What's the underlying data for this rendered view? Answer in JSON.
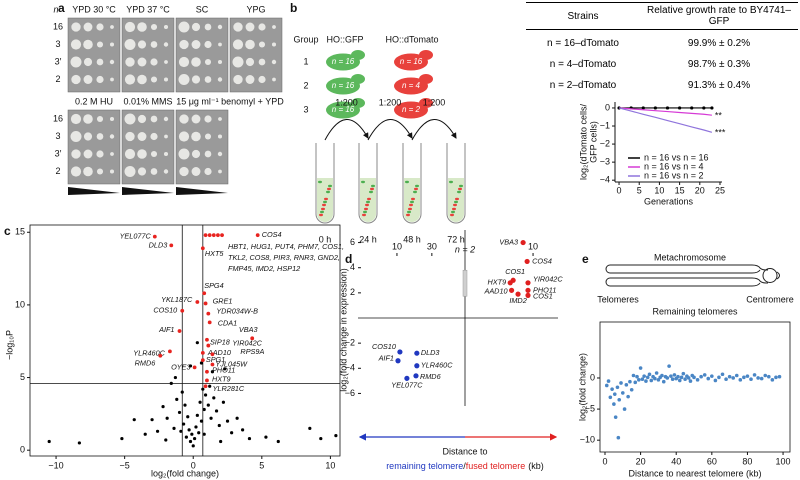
{
  "panel_labels": {
    "a": "a",
    "b": "b",
    "c": "c",
    "d": "d",
    "e": "e"
  },
  "a": {
    "n_header": "n",
    "top_conditions": [
      "YPD 30 °C",
      "YPD 37 °C",
      "SC",
      "YPG"
    ],
    "bottom_conditions": [
      "0.2 M HU",
      "0.01% MMS",
      "15 μg ml⁻¹ benomyl + YPD"
    ],
    "strains": [
      "16",
      "3",
      "3′",
      "2"
    ]
  },
  "b": {
    "group_header": "Group",
    "gfp_header": "HO::GFP",
    "tomato_header": "HO::dTomato",
    "groups": [
      "1",
      "2",
      "3"
    ],
    "gfp_cells": [
      "n = 16",
      "n = 16",
      "n = 16"
    ],
    "tomato_cells": [
      "n = 16",
      "n = 4",
      "n = 2"
    ],
    "dilutions": [
      "1:200",
      "1:200",
      "1:200"
    ],
    "times": [
      "0 h",
      "24 h",
      "48 h",
      "72 h"
    ]
  },
  "table": {
    "headers": [
      "Strains",
      "Relative growth rate to BY4741–GFP"
    ],
    "rows": [
      [
        "n = 16–dTomato",
        "99.9% ± 0.2%"
      ],
      [
        "n = 4–dTomato",
        "98.7% ± 0.3%"
      ],
      [
        "n = 2–dTomato",
        "91.3% ± 0.4%"
      ]
    ]
  },
  "growth_chart": {
    "type": "line",
    "y_label_lines": [
      "log₂(dTomato cells/",
      "GFP cells)"
    ],
    "x_label": "Generations",
    "xlim": [
      -1,
      25.5
    ],
    "ylim": [
      -4.1,
      0.33
    ],
    "xticks": [
      0,
      5,
      10,
      15,
      20,
      25
    ],
    "yticks": [
      0,
      {
        "value": -1,
        "label": "−1"
      },
      {
        "value": -2,
        "label": "−2"
      },
      {
        "value": -3,
        "label": "−3"
      },
      {
        "value": -4,
        "label": "−4"
      }
    ],
    "x": [
      0,
      3,
      6,
      9,
      12,
      15,
      18,
      21,
      23
    ],
    "series": [
      {
        "name": "n = 16 vs n = 16",
        "color": "#000000",
        "values": [
          0,
          0,
          0,
          0,
          0,
          0,
          0,
          0,
          0
        ]
      },
      {
        "name": "n = 16 vs n = 4",
        "color": "#d63ad6",
        "values": [
          0,
          -0.05,
          -0.1,
          -0.15,
          -0.2,
          -0.25,
          -0.3,
          -0.35,
          -0.4
        ]
      },
      {
        "name": "n = 16 vs n = 2",
        "color": "#8f74dc",
        "values": [
          0,
          -0.17,
          -0.35,
          -0.52,
          -0.7,
          -0.87,
          -1.05,
          -1.22,
          -1.35
        ]
      }
    ],
    "significance": [
      "**",
      "***"
    ]
  },
  "volcano": {
    "type": "scatter",
    "y_label": "−log₁₀P",
    "x_label": "log₂(fold change)",
    "xlim": [
      -11.9,
      10.7
    ],
    "ylim": [
      -0.4,
      15.5
    ],
    "xticks": [
      {
        "value": -10,
        "label": "−10"
      },
      {
        "value": -5,
        "label": "−5"
      },
      0,
      5,
      10
    ],
    "yticks": [
      0,
      5,
      10,
      15
    ],
    "threshold_x": [
      -0.8,
      0.7
    ],
    "threshold_y": 4.6,
    "background": {
      "color": "#000000",
      "x": [
        -10.5,
        -8.3,
        -5.2,
        -4.3,
        -3.5,
        -3.0,
        -2.6,
        -2.2,
        -2.0,
        -1.9,
        -1.6,
        -1.4,
        -1.3,
        -1.2,
        -1.0,
        -0.9,
        -0.8,
        -0.7,
        -0.6,
        -0.5,
        -0.4,
        -0.3,
        -0.2,
        -0.2,
        -0.1,
        0,
        0.1,
        0.2,
        0.3,
        0.3,
        0.4,
        0.5,
        0.6,
        0.6,
        0.7,
        0.8,
        0.8,
        0.9,
        1.0,
        1.1,
        1.2,
        1.3,
        1.4,
        1.5,
        1.7,
        1.9,
        2.0,
        2.2,
        2.3,
        2.5,
        2.8,
        3.2,
        3.6,
        4.1,
        5.3,
        6.2,
        8.5,
        9.3,
        10.4
      ],
      "y": [
        0.6,
        0.5,
        0.8,
        2.1,
        1.1,
        2.1,
        1.3,
        3.0,
        0.7,
        2.2,
        4.6,
        1.5,
        5.0,
        3.5,
        2.6,
        1.3,
        4.0,
        1.8,
        3.1,
        0.9,
        2.3,
        1.4,
        0.6,
        5.8,
        1.1,
        0.3,
        0.8,
        1.6,
        2.4,
        7.4,
        1.2,
        3.3,
        2.0,
        6.0,
        4.2,
        2.8,
        1.1,
        3.8,
        4.8,
        3.1,
        4.4,
        2.2,
        5.4,
        3.6,
        2.7,
        1.7,
        0.6,
        3.3,
        5.6,
        2.0,
        1.2,
        2.2,
        1.4,
        0.8,
        0.9,
        0.6,
        1.5,
        0.8,
        1.0
      ]
    },
    "significant": {
      "color": "#e8231f",
      "genes": [
        "YEL077C",
        "DLD3",
        "COS4",
        "HXT5",
        "SPG4",
        "GRE1",
        "YKL187C",
        "YDR034W-B",
        "COS10",
        "CDA1",
        "AIF1",
        "VBA3",
        "SIP18",
        "YIR042C",
        "AAD10",
        "RPS9A",
        "YLR460C",
        "RMD6",
        "SPG1",
        "YJL045W",
        "OYE3",
        "PHO11",
        "HXT9",
        "YLR281C"
      ],
      "x": [
        -2.8,
        -1.6,
        4.7,
        0.7,
        0.8,
        0.9,
        0.3,
        1.1,
        -0.8,
        1.2,
        -1.0,
        4.3,
        1.0,
        1.1,
        0.7,
        1.4,
        -1.7,
        -2.4,
        0.7,
        1.4,
        0.1,
        1.0,
        1.0,
        0.9
      ],
      "y": [
        14.7,
        14.1,
        14.8,
        13.9,
        10.8,
        10.1,
        10.2,
        9.4,
        9.6,
        8.8,
        8.2,
        7.7,
        7.6,
        7.2,
        6.7,
        6.6,
        6.8,
        6.5,
        6.2,
        5.9,
        5.7,
        5.4,
        4.8,
        4.4
      ]
    },
    "cluster": {
      "x": [
        0.9,
        1.2,
        1.5,
        1.8,
        2.1
      ],
      "y": [
        14.8,
        14.8,
        14.8,
        14.8,
        14.8
      ],
      "label_lines": [
        "HBT1, HUG1, PUT4, PHM7, COS1,",
        "TKL2, COS8, PIR3, RNR3, GND2,",
        "FMP45, IMD2, HSP12"
      ]
    }
  },
  "expression": {
    "type": "scatter",
    "title": "n = 2",
    "y_label": "log₂(fold change in expression)",
    "ylim": [
      -7,
      7
    ],
    "yticks": [
      {
        "value": -6,
        "label": "−6"
      },
      {
        "value": -4,
        "label": "−4"
      },
      {
        "value": -2,
        "label": "−2"
      },
      2,
      4,
      6
    ],
    "xlim": [
      0,
      49
    ],
    "left_ticks": [
      10,
      30
    ],
    "right_ticks": [
      10
    ],
    "x_label": "Distance to",
    "x_label_remaining": "remaining telomere",
    "x_label_sep": "/",
    "x_label_fused": "fused telomere",
    "x_label_unit": "(kb)",
    "remaining": {
      "color": "#2038c0",
      "genes": [
        "COS10",
        "AIF1",
        "DLD3",
        "YLR460C",
        "RMD6",
        "YEL077C"
      ],
      "distance": [
        11.7,
        10.6,
        21.4,
        21.4,
        20.9,
        15.7
      ],
      "values": [
        -2.7,
        -3.4,
        -2.8,
        -3.8,
        -4.6,
        -4.8
      ]
    },
    "fused": {
      "color": "#e02020",
      "genes": [
        "VBA3",
        "COS4",
        "COS1",
        "HXT9",
        "YIR042C",
        "PHO11",
        "AAD10",
        "IMD2",
        "COS1"
      ],
      "distance": [
        15.7,
        13.4,
        21.4,
        23.1,
        12.9,
        12.9,
        22.3,
        18.6,
        12.9
      ],
      "values": [
        6.0,
        4.5,
        3.0,
        2.8,
        2.8,
        2.2,
        2.2,
        1.9,
        1.8
      ]
    }
  },
  "e": {
    "diagram_title": "Metachromosome",
    "telomeres": "Telomeres",
    "centromere": "Centromere",
    "chart": {
      "type": "scatter",
      "title": "Remaining telomeres",
      "y_label": "log₂(fold change)",
      "x_label": "Distance to nearest telomere (kb)",
      "xlim": [
        -2.8,
        103.9
      ],
      "ylim": [
        -11.9,
        9.0
      ],
      "xticks": [
        0,
        20,
        40,
        60,
        80,
        100
      ],
      "yticks": [
        0,
        {
          "value": -5,
          "label": "−5"
        },
        {
          "value": -10,
          "label": "−10"
        }
      ],
      "color": "#4a86c5",
      "x": [
        1,
        2,
        3,
        4,
        5,
        5.5,
        6,
        7,
        7.5,
        8,
        9,
        10,
        11,
        12,
        13,
        14,
        15,
        16,
        17,
        18,
        19,
        20,
        21,
        22,
        23,
        24,
        25,
        26,
        27,
        28,
        29,
        30,
        31,
        32,
        33,
        34,
        35,
        36,
        37,
        38,
        39,
        40,
        41,
        42,
        43,
        44,
        45,
        46,
        47,
        48,
        49,
        50,
        52,
        54,
        56,
        58,
        60,
        62,
        64,
        66,
        68,
        70,
        72,
        74,
        76,
        78,
        80,
        82,
        84,
        86,
        88,
        90,
        92,
        94,
        96,
        98
      ],
      "y": [
        -1.2,
        -0.5,
        -3.1,
        -1.8,
        -4.2,
        -2.6,
        -6.3,
        -1.5,
        -9.6,
        -3.5,
        -0.8,
        -2.4,
        -5.0,
        -1.1,
        -3.0,
        -0.6,
        -1.9,
        0.4,
        -0.7,
        0.2,
        -0.3,
        1.6,
        -0.2,
        0.3,
        -0.5,
        0.1,
        0.6,
        -0.4,
        0.2,
        -0.1,
        0.8,
        -0.3,
        0.1,
        0.4,
        -0.6,
        0.2,
        0,
        1.9,
        0.3,
        -0.2,
        0.5,
        -0.1,
        0.2,
        -0.4,
        0.1,
        0.7,
        -0.2,
        0.3,
        0,
        -0.5,
        0.4,
        0.1,
        -0.3,
        0.2,
        0.5,
        -0.1,
        0.3,
        -0.4,
        0.1,
        0.6,
        -0.2,
        0.2,
        0,
        0.4,
        -0.3,
        0.1,
        0.3,
        -0.2,
        0.5,
        0,
        -0.1,
        0.4,
        0.2,
        -0.3,
        0.1,
        0.2
      ]
    }
  }
}
